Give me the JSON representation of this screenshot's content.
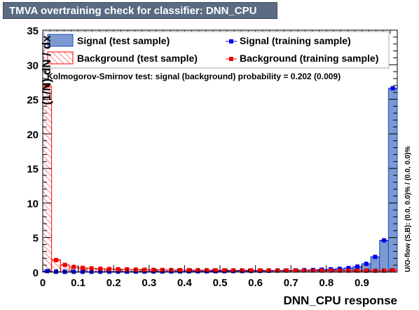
{
  "title": "TMVA overtraining check for classifier: DNN_CPU",
  "chart_data": {
    "type": "histogram",
    "xlabel": "DNN_CPU response",
    "ylabel": "(1/N) dN / dx",
    "xlim": [
      0,
      1
    ],
    "ylim": [
      0,
      35
    ],
    "x_ticks": [
      "0",
      "0.1",
      "0.2",
      "0.3",
      "0.4",
      "0.5",
      "0.6",
      "0.7",
      "0.8",
      "0.9"
    ],
    "y_ticks": [
      "0",
      "5",
      "10",
      "15",
      "20",
      "25",
      "30",
      "35"
    ],
    "bins": 40,
    "series": [
      {
        "name": "Signal (test sample)",
        "style": "filled",
        "color": "#7d99d1",
        "values": [
          0.15,
          0.05,
          0.04,
          0.05,
          0.05,
          0.05,
          0.06,
          0.06,
          0.07,
          0.07,
          0.08,
          0.08,
          0.09,
          0.09,
          0.1,
          0.1,
          0.11,
          0.12,
          0.12,
          0.13,
          0.14,
          0.15,
          0.16,
          0.17,
          0.18,
          0.2,
          0.22,
          0.24,
          0.26,
          0.29,
          0.32,
          0.36,
          0.41,
          0.48,
          0.6,
          0.8,
          1.2,
          2.2,
          4.5,
          26.5
        ]
      },
      {
        "name": "Background (test sample)",
        "style": "hatched",
        "color": "#ff0000",
        "values": [
          26.8,
          1.8,
          1.0,
          0.75,
          0.6,
          0.55,
          0.5,
          0.45,
          0.42,
          0.4,
          0.37,
          0.35,
          0.33,
          0.32,
          0.3,
          0.3,
          0.29,
          0.28,
          0.27,
          0.27,
          0.27,
          0.26,
          0.26,
          0.26,
          0.25,
          0.25,
          0.25,
          0.24,
          0.24,
          0.24,
          0.24,
          0.23,
          0.23,
          0.22,
          0.22,
          0.22,
          0.21,
          0.21,
          0.22,
          0.3
        ]
      },
      {
        "name": "Signal (training sample)",
        "style": "points",
        "color": "#0000ee",
        "values": [
          0.15,
          0.05,
          0.04,
          0.05,
          0.05,
          0.05,
          0.06,
          0.06,
          0.07,
          0.07,
          0.08,
          0.08,
          0.09,
          0.09,
          0.1,
          0.1,
          0.11,
          0.12,
          0.12,
          0.13,
          0.14,
          0.15,
          0.16,
          0.17,
          0.18,
          0.2,
          0.22,
          0.24,
          0.26,
          0.29,
          0.32,
          0.36,
          0.41,
          0.48,
          0.6,
          0.8,
          1.2,
          2.2,
          4.6,
          26.6
        ]
      },
      {
        "name": "Background (training sample)",
        "style": "points",
        "color": "#ee0000",
        "values": [
          27.0,
          1.75,
          1.05,
          0.75,
          0.62,
          0.55,
          0.5,
          0.45,
          0.42,
          0.4,
          0.37,
          0.35,
          0.33,
          0.32,
          0.3,
          0.3,
          0.29,
          0.28,
          0.27,
          0.27,
          0.27,
          0.26,
          0.26,
          0.26,
          0.25,
          0.25,
          0.25,
          0.24,
          0.24,
          0.24,
          0.24,
          0.23,
          0.23,
          0.22,
          0.22,
          0.22,
          0.21,
          0.21,
          0.22,
          0.3
        ]
      }
    ],
    "ks_text": "Kolmogorov-Smirnov test: signal (background) probability = 0.202 (0.009)",
    "overflow_text": "U/O-flow (S,B): (0.0, 0.0)% / (0.0, 0.0)%"
  },
  "legend": {
    "signal_test": "Signal (test sample)",
    "background_test": "Background (test sample)",
    "signal_train": "Signal (training sample)",
    "background_train": "Background (training sample)"
  }
}
